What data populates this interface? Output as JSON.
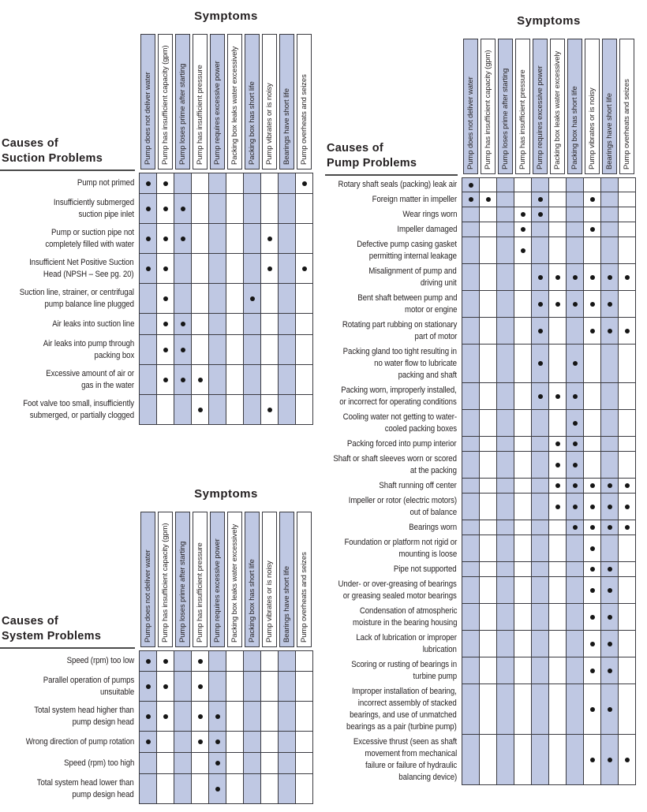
{
  "page": {
    "symptoms_title": "Symptoms"
  },
  "colors": {
    "stripe": "#bfc8e3",
    "grid": "#3a3a40",
    "dot": "#161616",
    "text": "#231f20",
    "rule": "#4a4a4a"
  },
  "symptom_columns": [
    "Pump does not deliver water",
    "Pump has insufficient capacity (gpm)",
    "Pump loses prime after starting",
    "Pump has insufficient pressure",
    "Pump requires excessive power",
    "Packing box leaks water excessively",
    "Packing box has short life",
    "Pump vibrates or is noisy",
    "Bearings have short life",
    "Pump overheats and seizes"
  ],
  "tables": [
    {
      "name": "suction-problems",
      "title": "Causes of\nSuction Problems",
      "rows": [
        {
          "label": "Pump not primed",
          "dots": [
            1,
            2,
            10
          ]
        },
        {
          "label": "Insufficiently submerged\nsuction pipe inlet",
          "dots": [
            1,
            2,
            3
          ]
        },
        {
          "label": "Pump or suction pipe not\ncompletely filled with water",
          "dots": [
            1,
            2,
            3,
            8
          ]
        },
        {
          "label": "Insufficient Net Positive Suction\nHead (NPSH – See pg. 20)",
          "dots": [
            1,
            2,
            8,
            10
          ]
        },
        {
          "label": "Suction line, strainer, or centrifugal\npump balance line plugged",
          "dots": [
            2,
            7
          ]
        },
        {
          "label": "Air leaks into suction line",
          "dots": [
            2,
            3
          ]
        },
        {
          "label": "Air leaks into pump through\npacking box",
          "dots": [
            2,
            3
          ]
        },
        {
          "label": "Excessive amount of air or\ngas in the water",
          "dots": [
            2,
            3,
            4
          ]
        },
        {
          "label": "Foot valve too small, insufficiently\nsubmerged, or partially clogged",
          "dots": [
            4,
            8
          ]
        }
      ]
    },
    {
      "name": "system-problems",
      "title": "Causes of\nSystem Problems",
      "rows": [
        {
          "label": "Speed (rpm) too low",
          "dots": [
            1,
            2,
            4
          ]
        },
        {
          "label": "Parallel operation of pumps\nunsuitable",
          "dots": [
            1,
            2,
            4
          ]
        },
        {
          "label": "Total system head higher than\npump design head",
          "dots": [
            1,
            2,
            4,
            5
          ]
        },
        {
          "label": "Wrong direction of pump rotation",
          "dots": [
            1,
            4,
            5
          ]
        },
        {
          "label": "Speed (rpm) too high",
          "dots": [
            5
          ]
        },
        {
          "label": "Total system head lower than\npump design head",
          "dots": [
            5
          ]
        }
      ]
    },
    {
      "name": "pump-problems",
      "title": "Causes of\nPump Problems",
      "rows": [
        {
          "label": "Rotary shaft seals (packing) leak air",
          "dots": [
            1
          ]
        },
        {
          "label": "Foreign matter in impeller",
          "dots": [
            1,
            2,
            5,
            8
          ]
        },
        {
          "label": "Wear rings worn",
          "dots": [
            4,
            5
          ]
        },
        {
          "label": "Impeller damaged",
          "dots": [
            4,
            8
          ]
        },
        {
          "label": "Defective pump casing gasket\npermitting internal leakage",
          "dots": [
            4
          ]
        },
        {
          "label": "Misalignment of pump and\ndriving unit",
          "dots": [
            5,
            6,
            7,
            8,
            9,
            10
          ]
        },
        {
          "label": "Bent shaft between pump and\nmotor or engine",
          "dots": [
            5,
            6,
            7,
            8,
            9
          ]
        },
        {
          "label": "Rotating part rubbing on stationary\npart of motor",
          "dots": [
            5,
            8,
            9,
            10
          ]
        },
        {
          "label": "Packing gland too tight resulting in\nno water flow to lubricate\npacking and shaft",
          "dots": [
            5,
            7
          ]
        },
        {
          "label": "Packing worn, improperly installed,\nor incorrect for operating conditions",
          "dots": [
            5,
            6,
            7
          ]
        },
        {
          "label": "Cooling water not getting to water-\ncooled packing boxes",
          "dots": [
            7
          ]
        },
        {
          "label": "Packing forced into pump interior",
          "dots": [
            6,
            7
          ]
        },
        {
          "label": "Shaft or shaft sleeves worn or scored\nat the packing",
          "dots": [
            6,
            7
          ]
        },
        {
          "label": "Shaft running off center",
          "dots": [
            6,
            7,
            8,
            9,
            10
          ]
        },
        {
          "label": "Impeller or rotor (electric motors)\nout of balance",
          "dots": [
            6,
            7,
            8,
            9,
            10
          ]
        },
        {
          "label": "Bearings worn",
          "dots": [
            7,
            8,
            9,
            10
          ]
        },
        {
          "label": "Foundation or platform not rigid or\nmounting is loose",
          "dots": [
            8
          ]
        },
        {
          "label": "Pipe not supported",
          "dots": [
            8,
            9
          ]
        },
        {
          "label": "Under- or over-greasing of bearings\nor greasing sealed motor bearings",
          "dots": [
            8,
            9
          ]
        },
        {
          "label": "Condensation of atmospheric\nmoisture in the bearing housing",
          "dots": [
            8,
            9
          ]
        },
        {
          "label": "Lack of lubrication or improper\nlubrication",
          "dots": [
            8,
            9
          ]
        },
        {
          "label": "Scoring or rusting of bearings in\nturbine pump",
          "dots": [
            8,
            9
          ]
        },
        {
          "label": "Improper installation of bearing,\nincorrect assembly of stacked\nbearings, and use of unmatched\nbearings as a pair (turbine pump)",
          "dots": [
            8,
            9
          ]
        },
        {
          "label": "Excessive thrust (seen as shaft\nmovement from mechanical\nfailure or failure of hydraulic\nbalancing device)",
          "dots": [
            8,
            9,
            10
          ]
        }
      ]
    }
  ]
}
